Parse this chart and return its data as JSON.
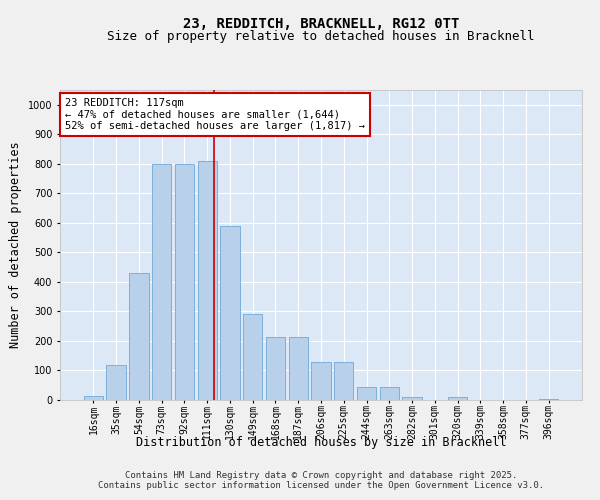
{
  "title1": "23, REDDITCH, BRACKNELL, RG12 0TT",
  "title2": "Size of property relative to detached houses in Bracknell",
  "xlabel": "Distribution of detached houses by size in Bracknell",
  "ylabel": "Number of detached properties",
  "bins": [
    "16sqm",
    "35sqm",
    "54sqm",
    "73sqm",
    "92sqm",
    "111sqm",
    "130sqm",
    "149sqm",
    "168sqm",
    "187sqm",
    "206sqm",
    "225sqm",
    "244sqm",
    "263sqm",
    "282sqm",
    "301sqm",
    "320sqm",
    "339sqm",
    "358sqm",
    "377sqm",
    "396sqm"
  ],
  "values": [
    15,
    120,
    430,
    800,
    800,
    810,
    590,
    290,
    215,
    215,
    130,
    130,
    45,
    45,
    10,
    0,
    10,
    0,
    0,
    0,
    5
  ],
  "bar_color": "#b8d0ea",
  "bar_edgecolor": "#6fa8d6",
  "vline_color": "#cc0000",
  "annotation_text": "23 REDDITCH: 117sqm\n← 47% of detached houses are smaller (1,644)\n52% of semi-detached houses are larger (1,817) →",
  "annotation_box_edgecolor": "#cc0000",
  "ylim": [
    0,
    1050
  ],
  "background_color": "#dce8f5",
  "grid_color": "#ffffff",
  "fig_background": "#f0f0f0",
  "footer": "Contains HM Land Registry data © Crown copyright and database right 2025.\nContains public sector information licensed under the Open Government Licence v3.0.",
  "title1_fontsize": 10,
  "title2_fontsize": 9,
  "ylabel_fontsize": 8.5,
  "xlabel_fontsize": 8.5,
  "tick_fontsize": 7,
  "footer_fontsize": 6.5,
  "annot_fontsize": 7.5
}
